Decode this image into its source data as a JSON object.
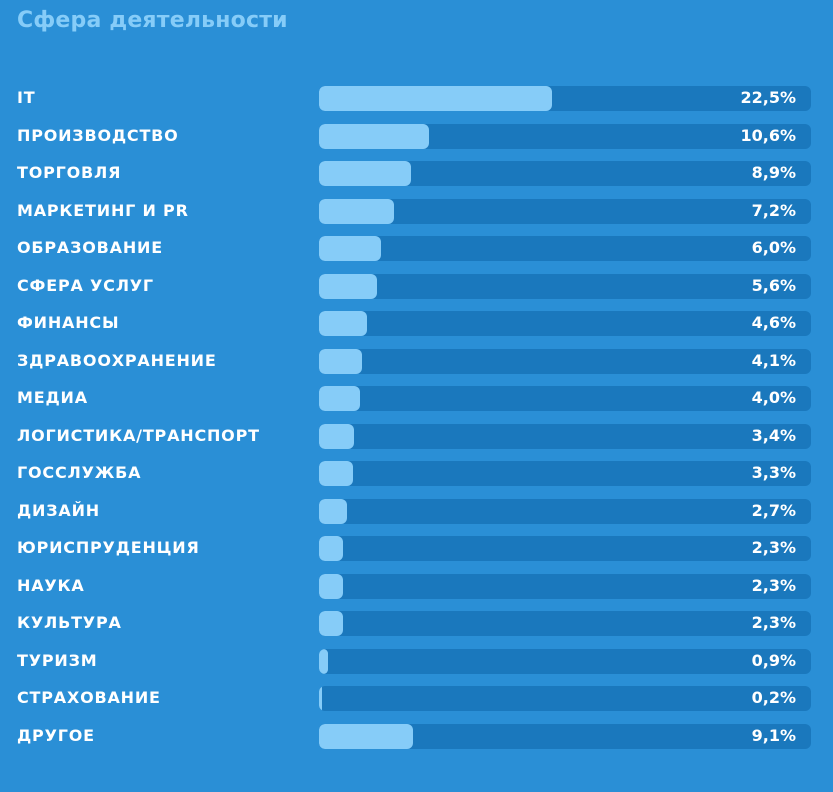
{
  "chart_data": {
    "type": "bar",
    "orientation": "horizontal",
    "title": "Сфера деятельности",
    "categories": [
      "IT",
      "ПРОИЗВОДСТВО",
      "ТОРГОВЛЯ",
      "МАРКЕТИНГ И PR",
      "ОБРАЗОВАНИЕ",
      "СФЕРА УСЛУГ",
      "ФИНАНСЫ",
      "ЗДРАВООХРАНЕНИЕ",
      "МЕДИА",
      "ЛОГИСТИКА/ТРАНСПОРТ",
      "ГОССЛУЖБА",
      "ДИЗАЙН",
      "ЮРИСПРУДЕНЦИЯ",
      "НАУКА",
      "КУЛЬТУРА",
      "ТУРИЗМ",
      "СТРАХОВАНИЕ",
      "ДРУГОЕ"
    ],
    "values": [
      22.5,
      10.6,
      8.9,
      7.2,
      6.0,
      5.6,
      4.6,
      4.1,
      4.0,
      3.4,
      3.3,
      2.7,
      2.3,
      2.3,
      2.3,
      0.9,
      0.2,
      9.1
    ],
    "value_labels": [
      "22,5%",
      "10,6%",
      "8,9%",
      "7,2%",
      "6,0%",
      "5,6%",
      "4,6%",
      "4,1%",
      "4,0%",
      "3,4%",
      "3,3%",
      "2,7%",
      "2,3%",
      "2,3%",
      "2,3%",
      "0,9%",
      "0,2%",
      "9,1%"
    ],
    "xlim": [
      0,
      47.5
    ],
    "grid": false,
    "colors": {
      "background": "#2a8fd6",
      "track": "#1a78bd",
      "bar": "#86ccf8",
      "title": "#86ccf8",
      "text": "#ffffff"
    }
  }
}
